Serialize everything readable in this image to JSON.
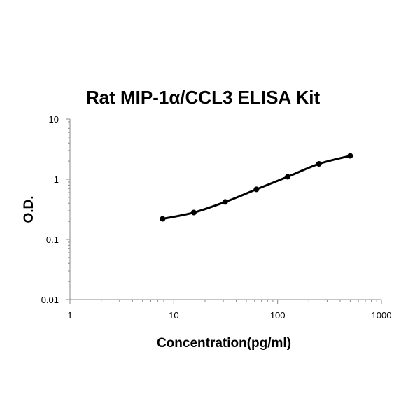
{
  "chart_data": {
    "type": "scatter",
    "title": "Rat MIP-1α/CCL3 ELISA Kit",
    "xlabel": "Concentration(pg/ml)",
    "ylabel": "O.D.",
    "x_scale": "log",
    "y_scale": "log",
    "xlim": [
      1,
      1000
    ],
    "ylim": [
      0.01,
      10
    ],
    "x_ticks": [
      "1",
      "10",
      "100",
      "1000"
    ],
    "y_ticks": [
      "0.01",
      "0.1",
      "1",
      "10"
    ],
    "grid": false,
    "legend": "none",
    "series": [
      {
        "x": [
          7.8,
          15.6,
          31.25,
          62.5,
          125,
          250,
          500
        ],
        "y": [
          0.22,
          0.28,
          0.42,
          0.68,
          1.1,
          1.8,
          2.45
        ]
      }
    ],
    "line_style": "smooth",
    "color": "#000000"
  }
}
